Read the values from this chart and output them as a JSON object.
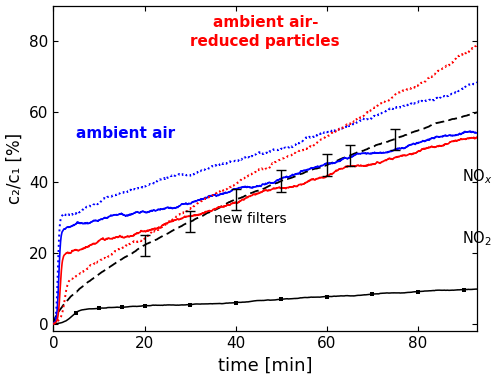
{
  "xlim": [
    0,
    93
  ],
  "ylim": [
    -2,
    90
  ],
  "xlabel": "time [min]",
  "ylabel": "c₂/c₁ [%]",
  "xticks": [
    0,
    20,
    40,
    60,
    80
  ],
  "yticks": [
    0,
    20,
    40,
    60,
    80
  ],
  "label_ambient_air": "ambient air",
  "label_ambient_air_rp": "ambient air-\nreduced particles",
  "label_new_filters": "new filters",
  "color_red": "#ff0000",
  "color_blue": "#0000ff",
  "color_black": "#000000",
  "noise_scale_high": 2.5,
  "noise_scale_low": 0.5,
  "seed": 42,
  "figsize": [
    5.0,
    3.8
  ],
  "dpi": 100
}
